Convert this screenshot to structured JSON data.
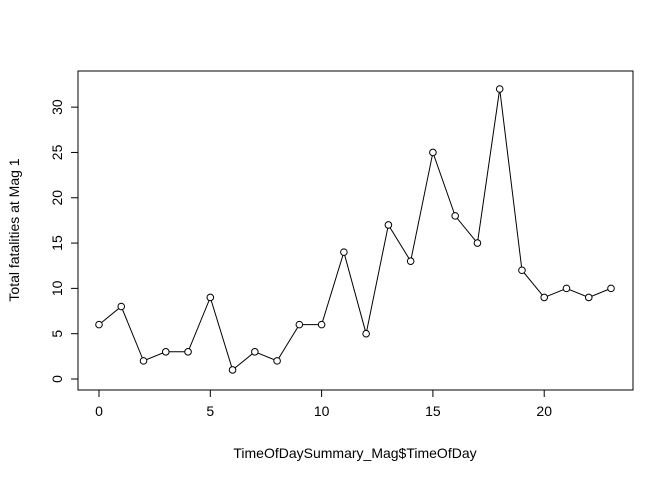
{
  "chart_data": {
    "type": "line",
    "title": "",
    "xlabel": "TimeOfDaySummary_Mag$TimeOfDay",
    "ylabel": "Total fatalities at Mag 1",
    "x": [
      0,
      1,
      2,
      3,
      4,
      5,
      6,
      7,
      8,
      9,
      10,
      11,
      12,
      13,
      14,
      15,
      16,
      17,
      18,
      19,
      20,
      21,
      22,
      23
    ],
    "y": [
      6,
      8,
      2,
      3,
      3,
      9,
      1,
      3,
      2,
      6,
      6,
      14,
      5,
      17,
      13,
      25,
      18,
      15,
      32,
      12,
      9,
      10,
      9,
      10
    ],
    "xlim": [
      0,
      23
    ],
    "ylim": [
      0,
      32
    ],
    "xticks": [
      0,
      5,
      10,
      15,
      20
    ],
    "yticks": [
      0,
      5,
      10,
      15,
      20,
      25,
      30
    ],
    "xtick_labels": [
      "0",
      "5",
      "10",
      "15",
      "20"
    ],
    "ytick_labels": [
      "0",
      "5",
      "10",
      "15",
      "20",
      "25",
      "30"
    ],
    "grid": false,
    "legend": "none",
    "marker": "open-circle",
    "line_color": "#000000"
  }
}
